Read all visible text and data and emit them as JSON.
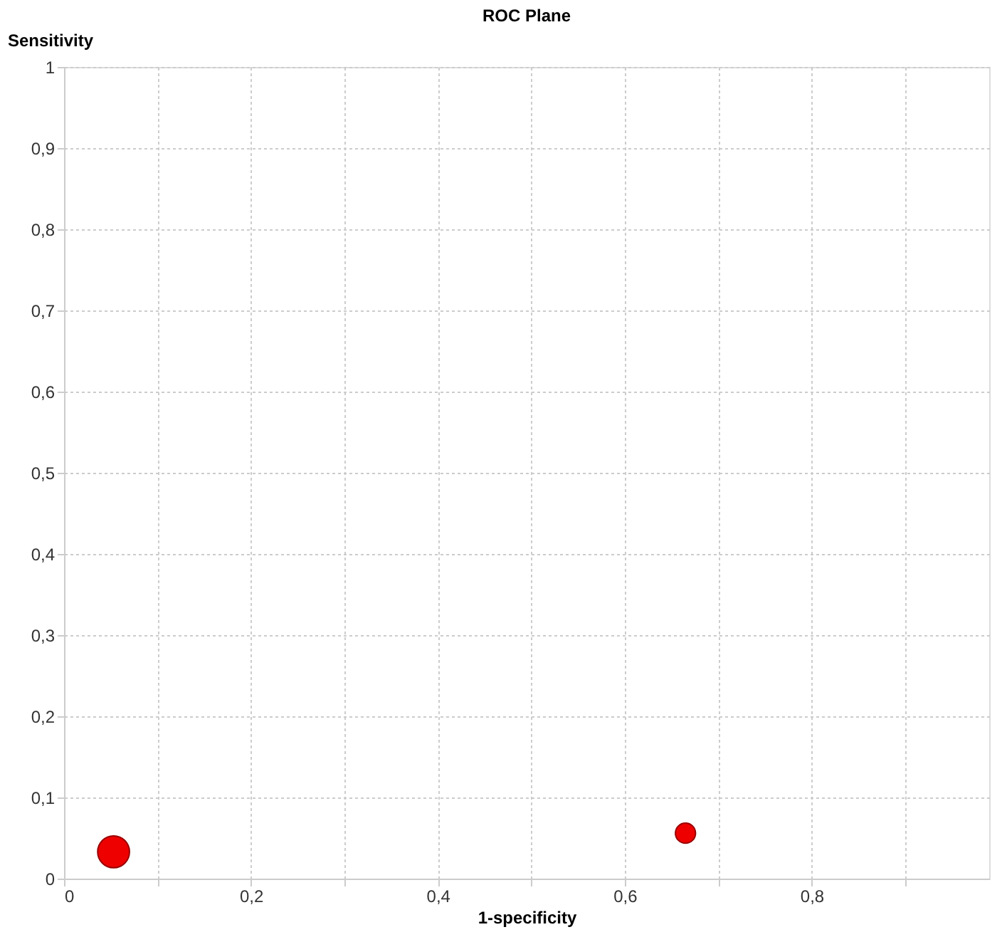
{
  "chart_data": {
    "type": "bubble",
    "title": "ROC Plane",
    "xlabel": "1-specificity",
    "ylabel": "Sensitivity",
    "x": [
      0.053,
      0.665
    ],
    "series": [
      {
        "color": "#ee0000",
        "values": [
          0.033,
          0.056
        ],
        "sizes": [
          1,
          0.4
        ]
      }
    ],
    "xlim": [
      0,
      0.99
    ],
    "ylim": [
      0,
      1
    ],
    "xticks": [
      0,
      {
        "value": 0.1,
        "label": null
      },
      {
        "value": 0.2,
        "label": "0,2"
      },
      {
        "value": 0.3,
        "label": null
      },
      {
        "value": 0.4,
        "label": "0,4"
      },
      {
        "value": 0.5,
        "label": null
      },
      {
        "value": 0.6,
        "label": "0,6"
      },
      {
        "value": 0.7,
        "label": null
      },
      {
        "value": 0.8,
        "label": "0,8"
      },
      {
        "value": 0.9,
        "label": null
      }
    ],
    "yticks": [
      0,
      {
        "value": 0.1,
        "label": "0,1"
      },
      {
        "value": 0.2,
        "label": "0,2"
      },
      {
        "value": 0.3,
        "label": "0,3"
      },
      {
        "value": 0.4,
        "label": "0,4"
      },
      {
        "value": 0.5,
        "label": "0,5"
      },
      {
        "value": 0.6,
        "label": "0,6"
      },
      {
        "value": 0.7,
        "label": "0,7"
      },
      {
        "value": 0.8,
        "label": "0,8"
      },
      {
        "value": 0.9,
        "label": "0,9"
      },
      1
    ],
    "grid": true,
    "legend": false
  }
}
